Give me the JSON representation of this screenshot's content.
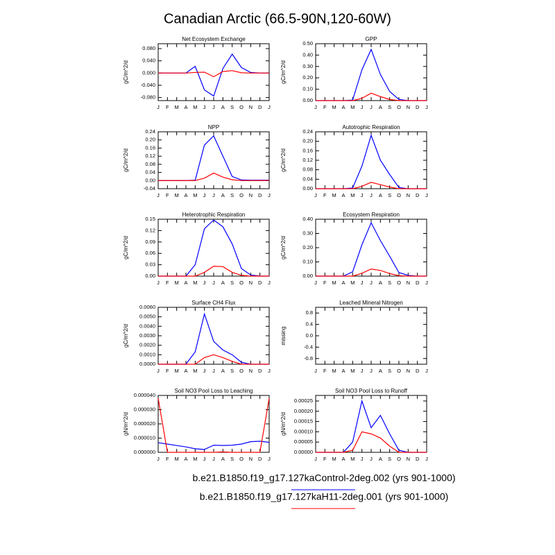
{
  "title": "Canadian Arctic (66.5-90N,120-60W)",
  "chart_data": [
    {
      "type": "line",
      "title": "Net Ecosystem Exchange",
      "y_label": "gC/m^2/d",
      "categories": [
        "J",
        "F",
        "M",
        "A",
        "M",
        "J",
        "J",
        "A",
        "S",
        "O",
        "N",
        "D",
        "J"
      ],
      "ylim": [
        -0.09,
        0.096
      ],
      "yticks": [
        {
          "value": -0.08,
          "label": "-0.080"
        },
        {
          "value": -0.04,
          "label": "-0.040"
        },
        {
          "value": 0,
          "label": "0.000"
        },
        {
          "value": 0.04,
          "label": "0.040"
        },
        {
          "value": 0.08,
          "label": "0.080"
        }
      ],
      "series": [
        {
          "name": "b.e21.B1850.f19_g17.127kaControl-2deg.002 (yrs 901-1000)",
          "color": "#0000ff",
          "values": [
            0,
            0,
            0,
            0,
            0.022,
            -0.055,
            -0.075,
            0.015,
            0.062,
            0.018,
            0.002,
            0,
            0
          ]
        },
        {
          "name": "b.e21.B1850.f19_g17.127kaH11-2deg.001 (yrs 901-1000)",
          "color": "#ff0000",
          "values": [
            0,
            0,
            0,
            0,
            0.002,
            0.003,
            -0.012,
            0.005,
            0.008,
            0.001,
            0,
            0,
            0
          ]
        }
      ]
    },
    {
      "type": "line",
      "title": "GPP",
      "y_label": "gC/m^2/d",
      "categories": [
        "J",
        "F",
        "M",
        "A",
        "M",
        "J",
        "J",
        "A",
        "S",
        "O",
        "N",
        "D",
        "J"
      ],
      "ylim": [
        0,
        0.5
      ],
      "yticks": [
        {
          "value": 0,
          "label": "0.00"
        },
        {
          "value": 0.1,
          "label": "0.10"
        },
        {
          "value": 0.2,
          "label": "0.20"
        },
        {
          "value": 0.3,
          "label": "0.30"
        },
        {
          "value": 0.4,
          "label": "0.40"
        },
        {
          "value": 0.5,
          "label": "0.50"
        }
      ],
      "series": [
        {
          "name": "b.e21.B1850.f19_g17.127kaControl-2deg.002 (yrs 901-1000)",
          "color": "#0000ff",
          "values": [
            0,
            0,
            0,
            0,
            0.005,
            0.27,
            0.45,
            0.23,
            0.08,
            0.01,
            0,
            0,
            0
          ]
        },
        {
          "name": "b.e21.B1850.f19_g17.127kaH11-2deg.001 (yrs 901-1000)",
          "color": "#ff0000",
          "values": [
            0,
            0,
            0,
            0,
            0,
            0.02,
            0.065,
            0.035,
            0.01,
            0,
            0,
            0,
            0
          ]
        }
      ]
    },
    {
      "type": "line",
      "title": "NPP",
      "y_label": "gC/m^2/d",
      "categories": [
        "J",
        "F",
        "M",
        "A",
        "M",
        "J",
        "J",
        "A",
        "S",
        "O",
        "N",
        "D",
        "J"
      ],
      "ylim": [
        -0.04,
        0.24
      ],
      "yticks": [
        -0.04,
        {
          "value": 0,
          "label": "0.00"
        },
        0.04,
        0.08,
        0.12,
        0.16,
        {
          "value": 0.2,
          "label": "0.20"
        },
        0.24
      ],
      "series": [
        {
          "name": "b.e21.B1850.f19_g17.127kaControl-2deg.002 (yrs 901-1000)",
          "color": "#0000ff",
          "values": [
            0,
            0,
            0,
            0,
            0.002,
            0.175,
            0.22,
            0.12,
            0.02,
            0.003,
            0.002,
            0.002,
            0.002
          ]
        },
        {
          "name": "b.e21.B1850.f19_g17.127kaH11-2deg.001 (yrs 901-1000)",
          "color": "#ff0000",
          "values": [
            0,
            0,
            0,
            0,
            0,
            0.012,
            0.037,
            0.017,
            0.004,
            0,
            0,
            0,
            0
          ]
        }
      ]
    },
    {
      "type": "line",
      "title": "Autotrophic Respiration",
      "y_label": "gC/m^2/d",
      "categories": [
        "J",
        "F",
        "M",
        "A",
        "M",
        "J",
        "J",
        "A",
        "S",
        "O",
        "N",
        "D",
        "J"
      ],
      "ylim": [
        0,
        0.24
      ],
      "yticks": [
        {
          "value": 0,
          "label": "0.00"
        },
        0.04,
        0.08,
        0.12,
        0.16,
        {
          "value": 0.2,
          "label": "0.20"
        },
        0.24
      ],
      "series": [
        {
          "name": "b.e21.B1850.f19_g17.127kaControl-2deg.002 (yrs 901-1000)",
          "color": "#0000ff",
          "values": [
            0,
            0,
            0,
            0,
            0.003,
            0.095,
            0.225,
            0.12,
            0.06,
            0.005,
            0,
            0,
            0
          ]
        },
        {
          "name": "b.e21.B1850.f19_g17.127kaH11-2deg.001 (yrs 901-1000)",
          "color": "#ff0000",
          "values": [
            0,
            0,
            0,
            0,
            0,
            0.01,
            0.027,
            0.017,
            0.007,
            0,
            0,
            0,
            0
          ]
        }
      ]
    },
    {
      "type": "line",
      "title": "Heterotrophic Respiration",
      "y_label": "gC/m^2/d",
      "categories": [
        "J",
        "F",
        "M",
        "A",
        "M",
        "J",
        "J",
        "A",
        "S",
        "O",
        "N",
        "D",
        "J"
      ],
      "ylim": [
        0,
        0.15
      ],
      "yticks": [
        {
          "value": 0,
          "label": "0.00"
        },
        0.03,
        0.06,
        0.09,
        0.12,
        0.15
      ],
      "series": [
        {
          "name": "b.e21.B1850.f19_g17.127kaControl-2deg.002 (yrs 901-1000)",
          "color": "#0000ff",
          "values": [
            0,
            0,
            0,
            0,
            0.03,
            0.125,
            0.148,
            0.13,
            0.085,
            0.02,
            0.003,
            0,
            0
          ]
        },
        {
          "name": "b.e21.B1850.f19_g17.127kaH11-2deg.001 (yrs 901-1000)",
          "color": "#ff0000",
          "values": [
            0,
            0,
            0,
            0,
            0,
            0.01,
            0.026,
            0.025,
            0.01,
            0.002,
            0,
            0,
            0
          ]
        }
      ]
    },
    {
      "type": "line",
      "title": "Ecosystem Respiration",
      "y_label": "gC/m^2/d",
      "categories": [
        "J",
        "F",
        "M",
        "A",
        "M",
        "J",
        "J",
        "A",
        "S",
        "O",
        "N",
        "D",
        "J"
      ],
      "ylim": [
        0,
        0.4
      ],
      "yticks": [
        {
          "value": 0,
          "label": "0.00"
        },
        {
          "value": 0.1,
          "label": "0.10"
        },
        {
          "value": 0.2,
          "label": "0.20"
        },
        {
          "value": 0.3,
          "label": "0.30"
        },
        {
          "value": 0.4,
          "label": "0.40"
        }
      ],
      "series": [
        {
          "name": "b.e21.B1850.f19_g17.127kaControl-2deg.002 (yrs 901-1000)",
          "color": "#0000ff",
          "values": [
            0,
            0,
            0,
            0,
            0.03,
            0.22,
            0.375,
            0.25,
            0.14,
            0.025,
            0.005,
            0,
            0
          ]
        },
        {
          "name": "b.e21.B1850.f19_g17.127kaH11-2deg.001 (yrs 901-1000)",
          "color": "#ff0000",
          "values": [
            0,
            0,
            0,
            0,
            0,
            0.02,
            0.05,
            0.04,
            0.018,
            0.003,
            0,
            0,
            0
          ]
        }
      ]
    },
    {
      "type": "line",
      "title": "Surface CH4 Flux",
      "y_label": "gC/m^2/d",
      "categories": [
        "J",
        "F",
        "M",
        "A",
        "M",
        "J",
        "J",
        "A",
        "S",
        "O",
        "N",
        "D",
        "J"
      ],
      "ylim": [
        0,
        0.006
      ],
      "yticks": [
        {
          "value": 0,
          "label": "0.0000"
        },
        {
          "value": 0.001,
          "label": "0.0010"
        },
        {
          "value": 0.002,
          "label": "0.0020"
        },
        {
          "value": 0.003,
          "label": "0.0030"
        },
        {
          "value": 0.004,
          "label": "0.0040"
        },
        {
          "value": 0.005,
          "label": "0.0050"
        },
        {
          "value": 0.006,
          "label": "0.0060"
        }
      ],
      "series": [
        {
          "name": "b.e21.B1850.f19_g17.127kaControl-2deg.002 (yrs 901-1000)",
          "color": "#0000ff",
          "values": [
            0,
            0,
            0,
            0,
            0.0013,
            0.0053,
            0.0024,
            0.0015,
            0.001,
            0.0002,
            0,
            0,
            0
          ]
        },
        {
          "name": "b.e21.B1850.f19_g17.127kaH11-2deg.001 (yrs 901-1000)",
          "color": "#ff0000",
          "values": [
            0,
            0,
            0,
            0,
            0,
            0.0007,
            0.001,
            0.0007,
            0.0003,
            0,
            0,
            0,
            0
          ]
        }
      ]
    },
    {
      "type": "line",
      "title": "Leached Mineral Nitrogen",
      "y_label": "missing",
      "categories": [
        "J",
        "F",
        "M",
        "A",
        "M",
        "J",
        "J",
        "A",
        "S",
        "O",
        "N",
        "D",
        "J"
      ],
      "ylim": [
        -1,
        1
      ],
      "yticks": [
        -0.8,
        -0.4,
        {
          "value": 0,
          "label": "0.0"
        },
        0.4,
        0.8
      ],
      "series": []
    },
    {
      "type": "line",
      "title": "Soil NO3 Pool Loss to Leaching",
      "y_label": "gN/m^2/d",
      "categories": [
        "J",
        "F",
        "M",
        "A",
        "M",
        "J",
        "J",
        "A",
        "S",
        "O",
        "N",
        "D",
        "J"
      ],
      "ylim": [
        0,
        4e-05
      ],
      "yticks": [
        {
          "value": 0,
          "label": "0.000000"
        },
        {
          "value": 1e-05,
          "label": "0.000010"
        },
        {
          "value": 2e-05,
          "label": "0.000020"
        },
        {
          "value": 3e-05,
          "label": "0.000030"
        },
        {
          "value": 4e-05,
          "label": "0.000040"
        }
      ],
      "series": [
        {
          "name": "b.e21.B1850.f19_g17.127kaControl-2deg.002 (yrs 901-1000)",
          "color": "#0000ff",
          "values": [
            6.8e-06,
            5.8e-06,
            4.8e-06,
            3.8e-06,
            2.5e-06,
            2e-06,
            5e-06,
            4.8e-06,
            5e-06,
            5.8e-06,
            7.5e-06,
            7.8e-06,
            7e-06
          ]
        },
        {
          "name": "b.e21.B1850.f19_g17.127kaH11-2deg.001 (yrs 901-1000)",
          "color": "#ff0000",
          "values": [
            3.8e-05,
            0,
            0,
            0,
            0,
            0,
            0,
            3e-07,
            0,
            0,
            0,
            0,
            3.8e-05
          ]
        }
      ]
    },
    {
      "type": "line",
      "title": "Soil NO3 Pool Loss to Runoff",
      "y_label": "gN/m^2/d",
      "categories": [
        "J",
        "F",
        "M",
        "A",
        "M",
        "J",
        "J",
        "A",
        "S",
        "O",
        "N",
        "D",
        "J"
      ],
      "ylim": [
        0,
        0.000277
      ],
      "yticks": [
        {
          "value": 0,
          "label": "0.00000"
        },
        {
          "value": 5e-05,
          "label": "0.00005"
        },
        {
          "value": 0.0001,
          "label": "0.00010"
        },
        {
          "value": 0.00015,
          "label": "0.00015"
        },
        {
          "value": 0.0002,
          "label": "0.00020"
        },
        {
          "value": 0.00025,
          "label": "0.00025"
        }
      ],
      "series": [
        {
          "name": "b.e21.B1850.f19_g17.127kaControl-2deg.002 (yrs 901-1000)",
          "color": "#0000ff",
          "values": [
            0,
            0,
            0,
            0,
            5e-05,
            0.00025,
            0.00012,
            0.00018,
            9e-05,
            1e-05,
            0,
            0,
            0
          ]
        },
        {
          "name": "b.e21.B1850.f19_g17.127kaH11-2deg.001 (yrs 901-1000)",
          "color": "#ff0000",
          "values": [
            0,
            0,
            0,
            0,
            1e-05,
            0.0001,
            9e-05,
            7e-05,
            3e-05,
            0,
            0,
            0,
            0
          ]
        }
      ]
    }
  ]
}
